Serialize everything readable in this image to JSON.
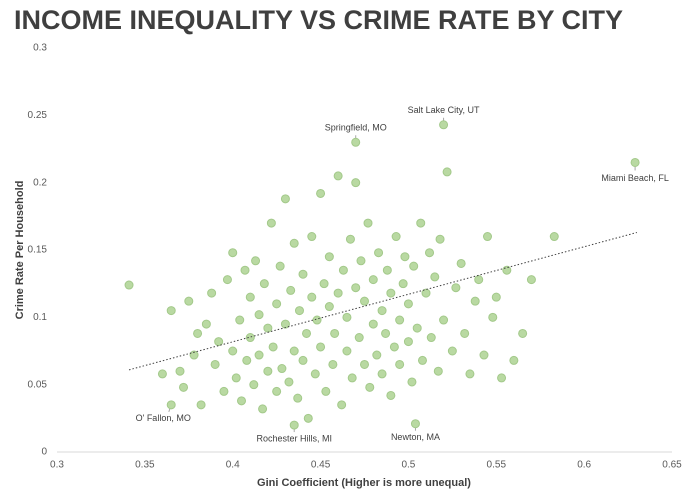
{
  "chart_data": {
    "type": "scatter",
    "title": "INCOME INEQUALITY VS CRIME RATE BY CITY",
    "x_label": "Gini Coefficient (Higher is more unequal)",
    "y_label": "Crime Rate Per Household",
    "xlim": [
      0.3,
      0.65
    ],
    "xticks": [
      0.3,
      0.35,
      0.4,
      0.45,
      0.5,
      0.55,
      0.6,
      0.65
    ],
    "ylim": [
      0,
      0.3
    ],
    "yticks": [
      0,
      0.05,
      0.1,
      0.15,
      0.2,
      0.25,
      0.3
    ],
    "grid": false,
    "color": "#b9d9a2",
    "x": [
      0.36,
      0.365,
      0.37,
      0.372,
      0.375,
      0.378,
      0.38,
      0.382,
      0.385,
      0.388,
      0.39,
      0.392,
      0.395,
      0.397,
      0.4,
      0.4,
      0.402,
      0.404,
      0.405,
      0.407,
      0.408,
      0.41,
      0.41,
      0.412,
      0.413,
      0.415,
      0.415,
      0.417,
      0.418,
      0.42,
      0.42,
      0.422,
      0.423,
      0.425,
      0.425,
      0.427,
      0.428,
      0.43,
      0.43,
      0.432,
      0.433,
      0.435,
      0.435,
      0.437,
      0.438,
      0.44,
      0.44,
      0.442,
      0.443,
      0.445,
      0.445,
      0.447,
      0.448,
      0.45,
      0.45,
      0.452,
      0.453,
      0.455,
      0.455,
      0.457,
      0.458,
      0.46,
      0.46,
      0.462,
      0.463,
      0.465,
      0.465,
      0.467,
      0.468,
      0.47,
      0.47,
      0.472,
      0.473,
      0.475,
      0.475,
      0.477,
      0.478,
      0.48,
      0.48,
      0.482,
      0.483,
      0.485,
      0.485,
      0.487,
      0.488,
      0.49,
      0.49,
      0.492,
      0.493,
      0.495,
      0.495,
      0.497,
      0.498,
      0.5,
      0.5,
      0.502,
      0.503,
      0.505,
      0.507,
      0.508,
      0.51,
      0.512,
      0.513,
      0.515,
      0.517,
      0.518,
      0.52,
      0.522,
      0.525,
      0.527,
      0.53,
      0.532,
      0.535,
      0.538,
      0.54,
      0.543,
      0.545,
      0.548,
      0.55,
      0.553,
      0.556,
      0.56,
      0.565,
      0.57,
      0.583,
      0.341
    ],
    "y": [
      0.058,
      0.105,
      0.06,
      0.048,
      0.112,
      0.072,
      0.088,
      0.035,
      0.095,
      0.118,
      0.065,
      0.082,
      0.045,
      0.128,
      0.075,
      0.148,
      0.055,
      0.098,
      0.038,
      0.135,
      0.068,
      0.085,
      0.115,
      0.05,
      0.142,
      0.072,
      0.102,
      0.032,
      0.125,
      0.06,
      0.092,
      0.17,
      0.078,
      0.11,
      0.045,
      0.138,
      0.062,
      0.095,
      0.188,
      0.052,
      0.12,
      0.075,
      0.155,
      0.04,
      0.105,
      0.068,
      0.132,
      0.088,
      0.025,
      0.115,
      0.16,
      0.058,
      0.098,
      0.192,
      0.078,
      0.125,
      0.045,
      0.108,
      0.145,
      0.065,
      0.088,
      0.205,
      0.118,
      0.035,
      0.135,
      0.075,
      0.1,
      0.158,
      0.055,
      0.122,
      0.2,
      0.085,
      0.142,
      0.065,
      0.112,
      0.17,
      0.048,
      0.095,
      0.128,
      0.072,
      0.148,
      0.105,
      0.058,
      0.088,
      0.135,
      0.118,
      0.042,
      0.078,
      0.16,
      0.098,
      0.065,
      0.125,
      0.145,
      0.082,
      0.11,
      0.052,
      0.138,
      0.092,
      0.17,
      0.068,
      0.118,
      0.148,
      0.085,
      0.13,
      0.06,
      0.158,
      0.098,
      0.208,
      0.075,
      0.122,
      0.14,
      0.088,
      0.058,
      0.112,
      0.128,
      0.072,
      0.16,
      0.1,
      0.115,
      0.055,
      0.135,
      0.068,
      0.088,
      0.128,
      0.16,
      0.124
    ],
    "annotations": [
      {
        "text": "Salt Lake City, UT",
        "x": 0.52,
        "y": 0.243
      },
      {
        "text": "Springfield, MO",
        "x": 0.47,
        "y": 0.23
      },
      {
        "text": "Miami Beach, FL",
        "x": 0.629,
        "y": 0.215
      },
      {
        "text": "O' Fallon, MO",
        "x": 0.365,
        "y": 0.035
      },
      {
        "text": "Rochester Hills, MI",
        "x": 0.435,
        "y": 0.02
      },
      {
        "text": "Newton, MA",
        "x": 0.504,
        "y": 0.021
      }
    ],
    "trendline": {
      "x": [
        0.341,
        0.63
      ],
      "y": [
        0.061,
        0.163
      ]
    }
  }
}
